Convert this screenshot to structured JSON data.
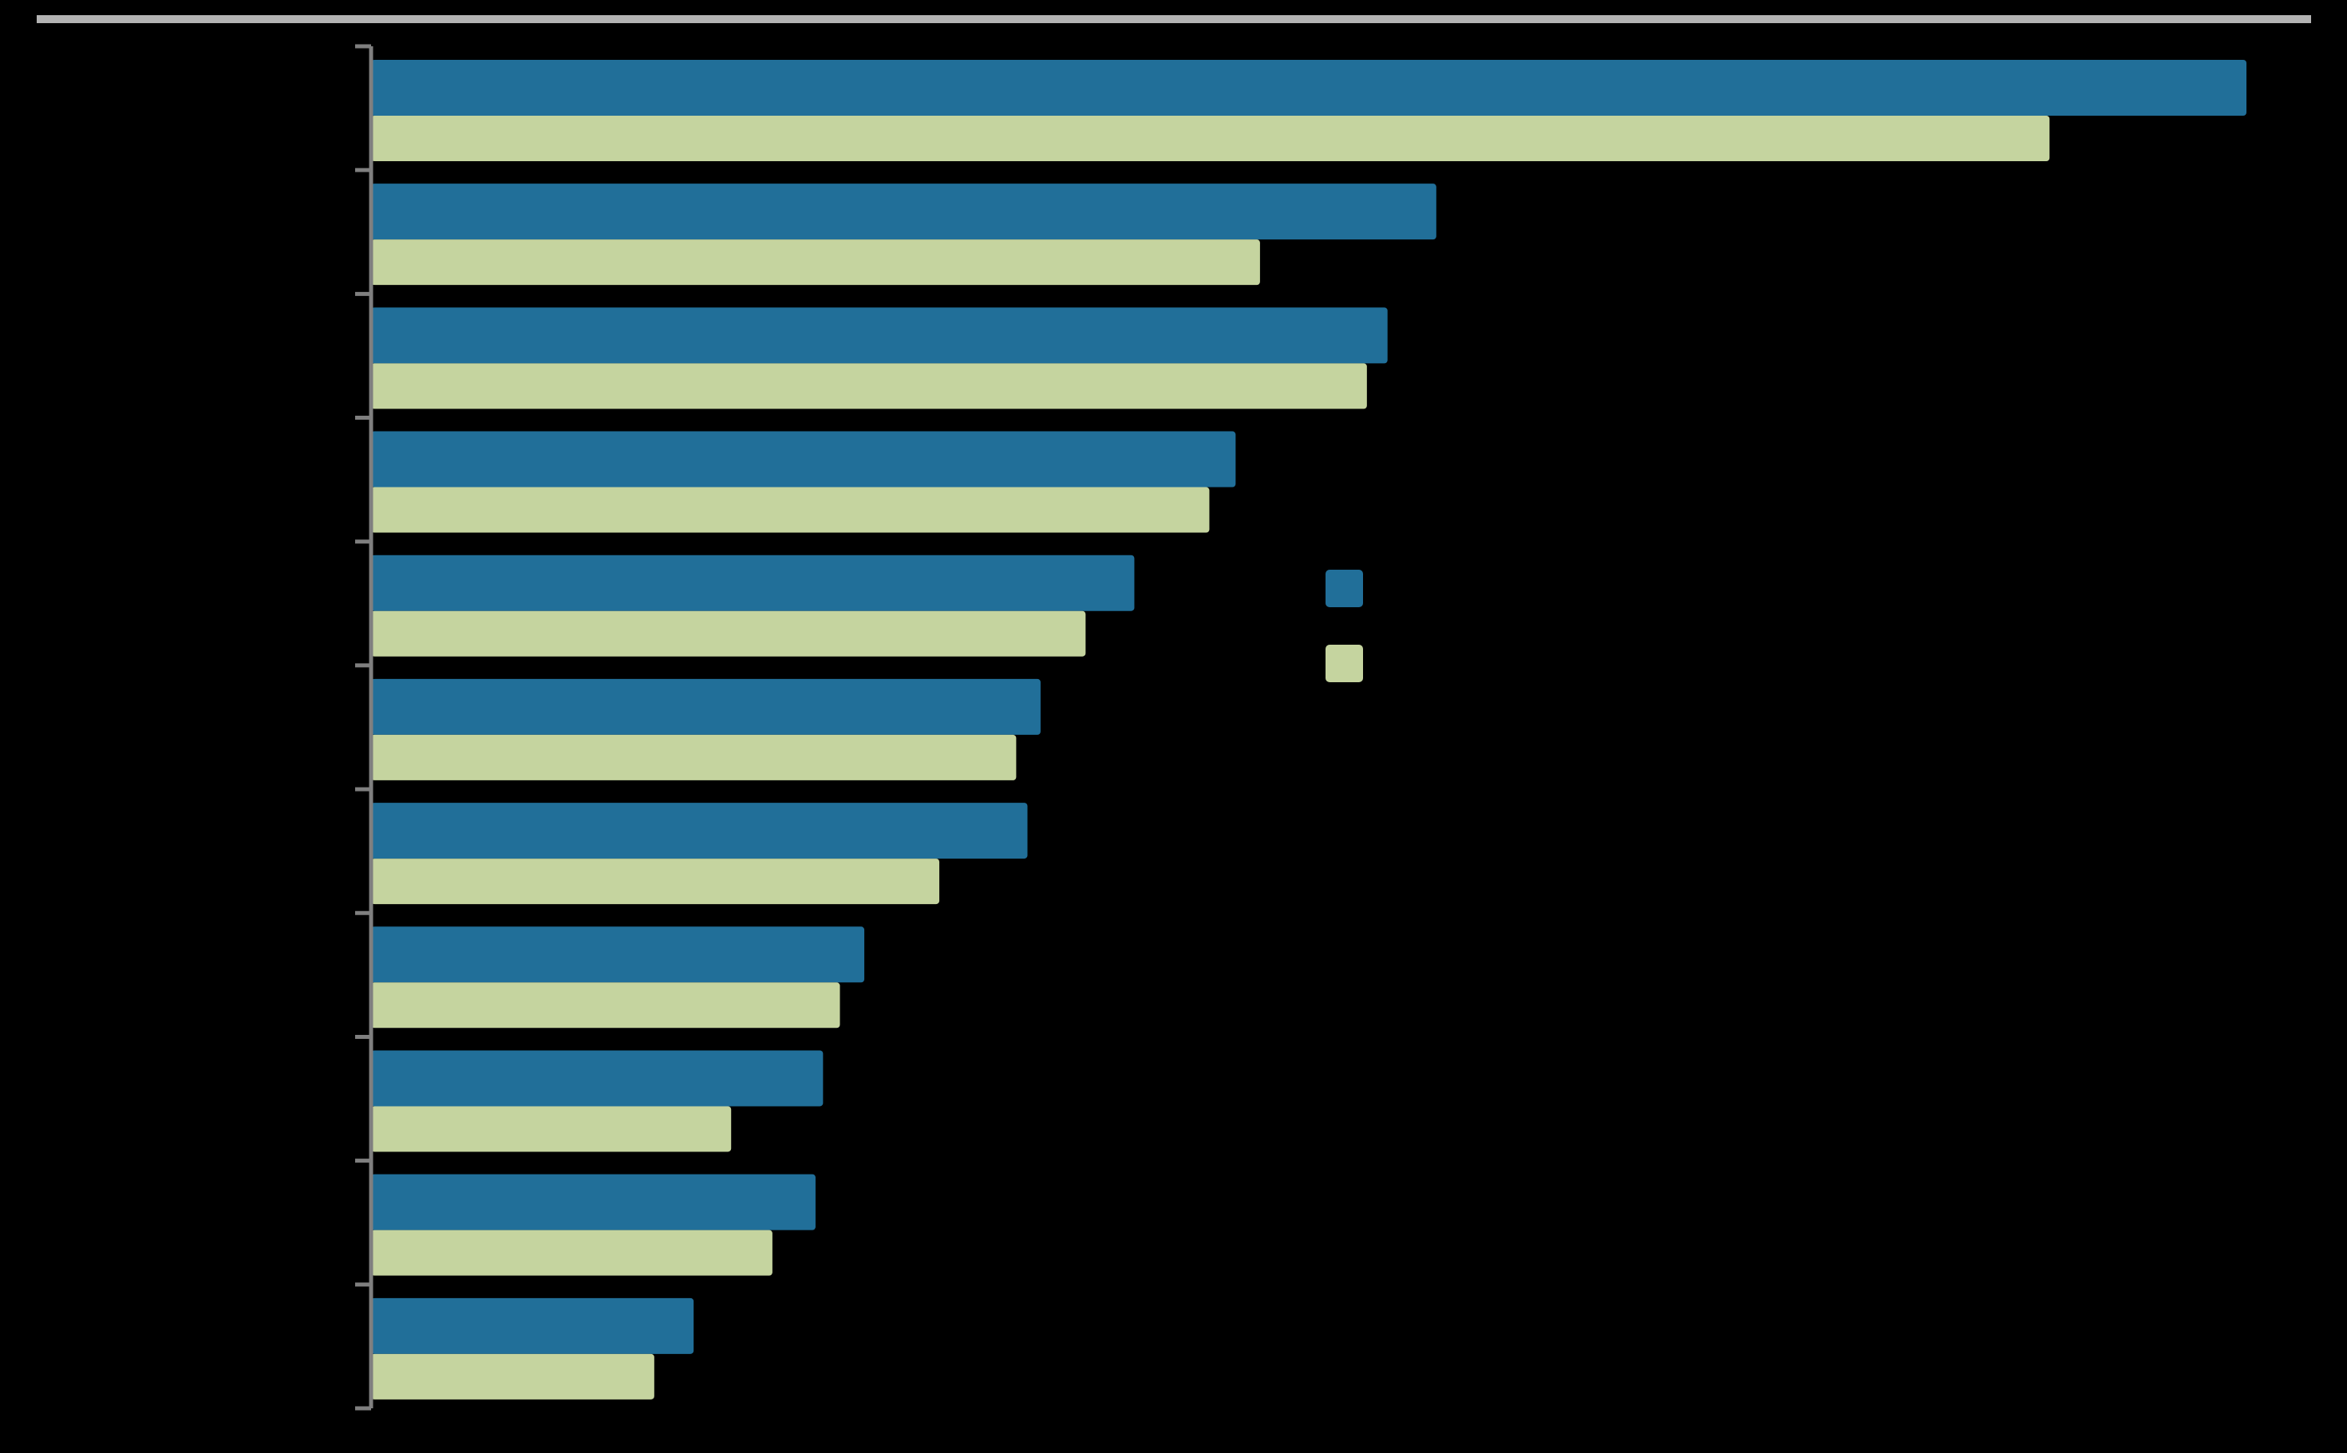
{
  "colors": {
    "background": "#000000",
    "series_1": "#216f99",
    "series_2": "#c5d49f",
    "axis": "#7f7f7f",
    "top_rule": "#b3b3b3"
  },
  "chart_data": {
    "type": "bar",
    "orientation": "horizontal",
    "title": "",
    "xlabel": "",
    "ylabel": "",
    "xlim": [
      0,
      100
    ],
    "grid": false,
    "legend": "center",
    "categories": [
      "",
      "",
      "",
      "",
      "",
      "",
      "",
      "",
      "",
      "",
      ""
    ],
    "series": [
      {
        "color": "#216f99",
        "values": [
          100,
          56.8,
          54.2,
          46.1,
          40.7,
          35.7,
          35.0,
          26.3,
          24.1,
          23.7,
          17.2
        ]
      },
      {
        "color": "#c5d49f",
        "values": [
          89.5,
          47.4,
          53.1,
          44.7,
          38.1,
          34.4,
          30.3,
          25.0,
          19.2,
          21.4,
          15.1
        ]
      }
    ]
  }
}
